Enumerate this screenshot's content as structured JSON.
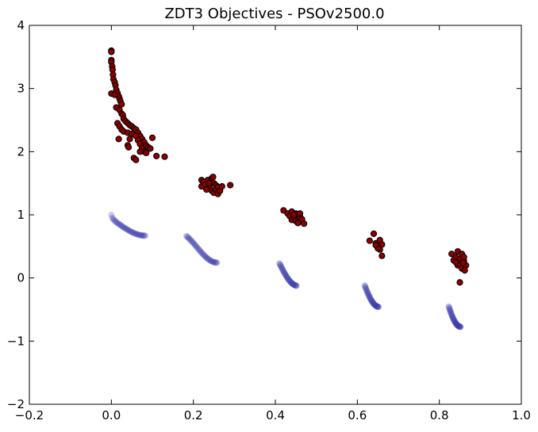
{
  "chart_data": {
    "type": "scatter",
    "title": "ZDT3 Objectives - PSOv2500.0",
    "xlabel": "",
    "ylabel": "",
    "xlim": [
      -0.2,
      1.0
    ],
    "ylim": [
      -2,
      4
    ],
    "xticks": [
      "−0.2",
      "0.0",
      "0.2",
      "0.4",
      "0.6",
      "0.8",
      "1.0"
    ],
    "xtick_values": [
      -0.2,
      0.0,
      0.2,
      0.4,
      0.6,
      0.8,
      1.0
    ],
    "yticks": [
      "−2",
      "−1",
      "0",
      "1",
      "2",
      "3",
      "4"
    ],
    "ytick_values": [
      -2,
      -1,
      0,
      1,
      2,
      3,
      4
    ],
    "grid": false,
    "series": [
      {
        "marker": "dark-red-filled-circle",
        "color": "#8b0000",
        "edge_color": "#000000",
        "points": [
          [
            0.0,
            3.6
          ],
          [
            0.0,
            3.58
          ],
          [
            0.0,
            3.45
          ],
          [
            0.0,
            3.42
          ],
          [
            0.002,
            3.35
          ],
          [
            0.003,
            3.3
          ],
          [
            0.004,
            3.22
          ],
          [
            0.005,
            3.15
          ],
          [
            0.008,
            3.1
          ],
          [
            0.01,
            3.05
          ],
          [
            0.012,
            2.98
          ],
          [
            0.015,
            2.93
          ],
          [
            0.018,
            2.88
          ],
          [
            0.02,
            2.84
          ],
          [
            0.022,
            2.8
          ],
          [
            0.025,
            2.75
          ],
          [
            0.0,
            2.92
          ],
          [
            0.008,
            2.9
          ],
          [
            0.012,
            2.7
          ],
          [
            0.02,
            2.66
          ],
          [
            0.025,
            2.6
          ],
          [
            0.028,
            2.58
          ],
          [
            0.03,
            2.52
          ],
          [
            0.035,
            2.48
          ],
          [
            0.04,
            2.45
          ],
          [
            0.045,
            2.42
          ],
          [
            0.05,
            2.4
          ],
          [
            0.055,
            2.37
          ],
          [
            0.06,
            2.35
          ],
          [
            0.065,
            2.3
          ],
          [
            0.07,
            2.25
          ],
          [
            0.075,
            2.2
          ],
          [
            0.08,
            2.15
          ],
          [
            0.085,
            2.1
          ],
          [
            0.09,
            2.07
          ],
          [
            0.095,
            2.05
          ],
          [
            0.015,
            2.45
          ],
          [
            0.02,
            2.4
          ],
          [
            0.025,
            2.35
          ],
          [
            0.03,
            2.32
          ],
          [
            0.04,
            2.3
          ],
          [
            0.05,
            2.28
          ],
          [
            0.06,
            2.25
          ],
          [
            0.065,
            2.18
          ],
          [
            0.07,
            2.12
          ],
          [
            0.075,
            2.05
          ],
          [
            0.08,
            2.0
          ],
          [
            0.085,
            1.98
          ],
          [
            0.04,
            2.1
          ],
          [
            0.042,
            2.07
          ],
          [
            0.018,
            2.2
          ],
          [
            0.055,
            1.9
          ],
          [
            0.06,
            1.87
          ],
          [
            0.1,
            2.22
          ],
          [
            0.11,
            1.93
          ],
          [
            0.13,
            1.92
          ],
          [
            0.07,
            2.0
          ],
          [
            0.045,
            2.2
          ],
          [
            0.22,
            1.55
          ],
          [
            0.22,
            1.45
          ],
          [
            0.225,
            1.52
          ],
          [
            0.23,
            1.48
          ],
          [
            0.235,
            1.55
          ],
          [
            0.24,
            1.42
          ],
          [
            0.245,
            1.38
          ],
          [
            0.245,
            1.58
          ],
          [
            0.25,
            1.5
          ],
          [
            0.25,
            1.35
          ],
          [
            0.255,
            1.47
          ],
          [
            0.255,
            1.4
          ],
          [
            0.26,
            1.33
          ],
          [
            0.26,
            1.44
          ],
          [
            0.265,
            1.38
          ],
          [
            0.27,
            1.45
          ],
          [
            0.232,
            1.4
          ],
          [
            0.238,
            1.5
          ],
          [
            0.29,
            1.47
          ],
          [
            0.248,
            1.6
          ],
          [
            0.42,
            1.07
          ],
          [
            0.43,
            1.02
          ],
          [
            0.435,
            0.98
          ],
          [
            0.44,
            1.05
          ],
          [
            0.44,
            0.92
          ],
          [
            0.445,
            0.96
          ],
          [
            0.45,
            0.9
          ],
          [
            0.45,
            1.02
          ],
          [
            0.455,
            0.87
          ],
          [
            0.46,
            0.97
          ],
          [
            0.465,
            0.93
          ],
          [
            0.47,
            0.86
          ],
          [
            0.46,
            1.02
          ],
          [
            0.445,
            1.0
          ],
          [
            0.63,
            0.59
          ],
          [
            0.64,
            0.7
          ],
          [
            0.645,
            0.55
          ],
          [
            0.65,
            0.5
          ],
          [
            0.655,
            0.45
          ],
          [
            0.655,
            0.6
          ],
          [
            0.66,
            0.35
          ],
          [
            0.66,
            0.53
          ],
          [
            0.65,
            0.47
          ],
          [
            0.645,
            0.52
          ],
          [
            0.83,
            0.38
          ],
          [
            0.835,
            0.28
          ],
          [
            0.84,
            0.33
          ],
          [
            0.845,
            0.42
          ],
          [
            0.845,
            0.2
          ],
          [
            0.85,
            0.3
          ],
          [
            0.85,
            0.22
          ],
          [
            0.855,
            0.38
          ],
          [
            0.855,
            0.15
          ],
          [
            0.86,
            0.27
          ],
          [
            0.86,
            0.33
          ],
          [
            0.865,
            0.2
          ],
          [
            0.862,
            0.12
          ],
          [
            0.85,
            -0.07
          ],
          [
            0.84,
            0.25
          ],
          [
            0.858,
            0.24
          ]
        ]
      },
      {
        "marker": "blue-faint-circle",
        "color": "#3a3aaa",
        "opacity": 0.25,
        "curves": [
          {
            "x_range": [
              0.0,
              0.083
            ]
          },
          {
            "x_range": [
              0.183,
              0.258
            ]
          },
          {
            "x_range": [
              0.41,
              0.452
            ]
          },
          {
            "x_range": [
              0.618,
              0.652
            ]
          },
          {
            "x_range": [
              0.823,
              0.852
            ]
          }
        ]
      }
    ]
  }
}
